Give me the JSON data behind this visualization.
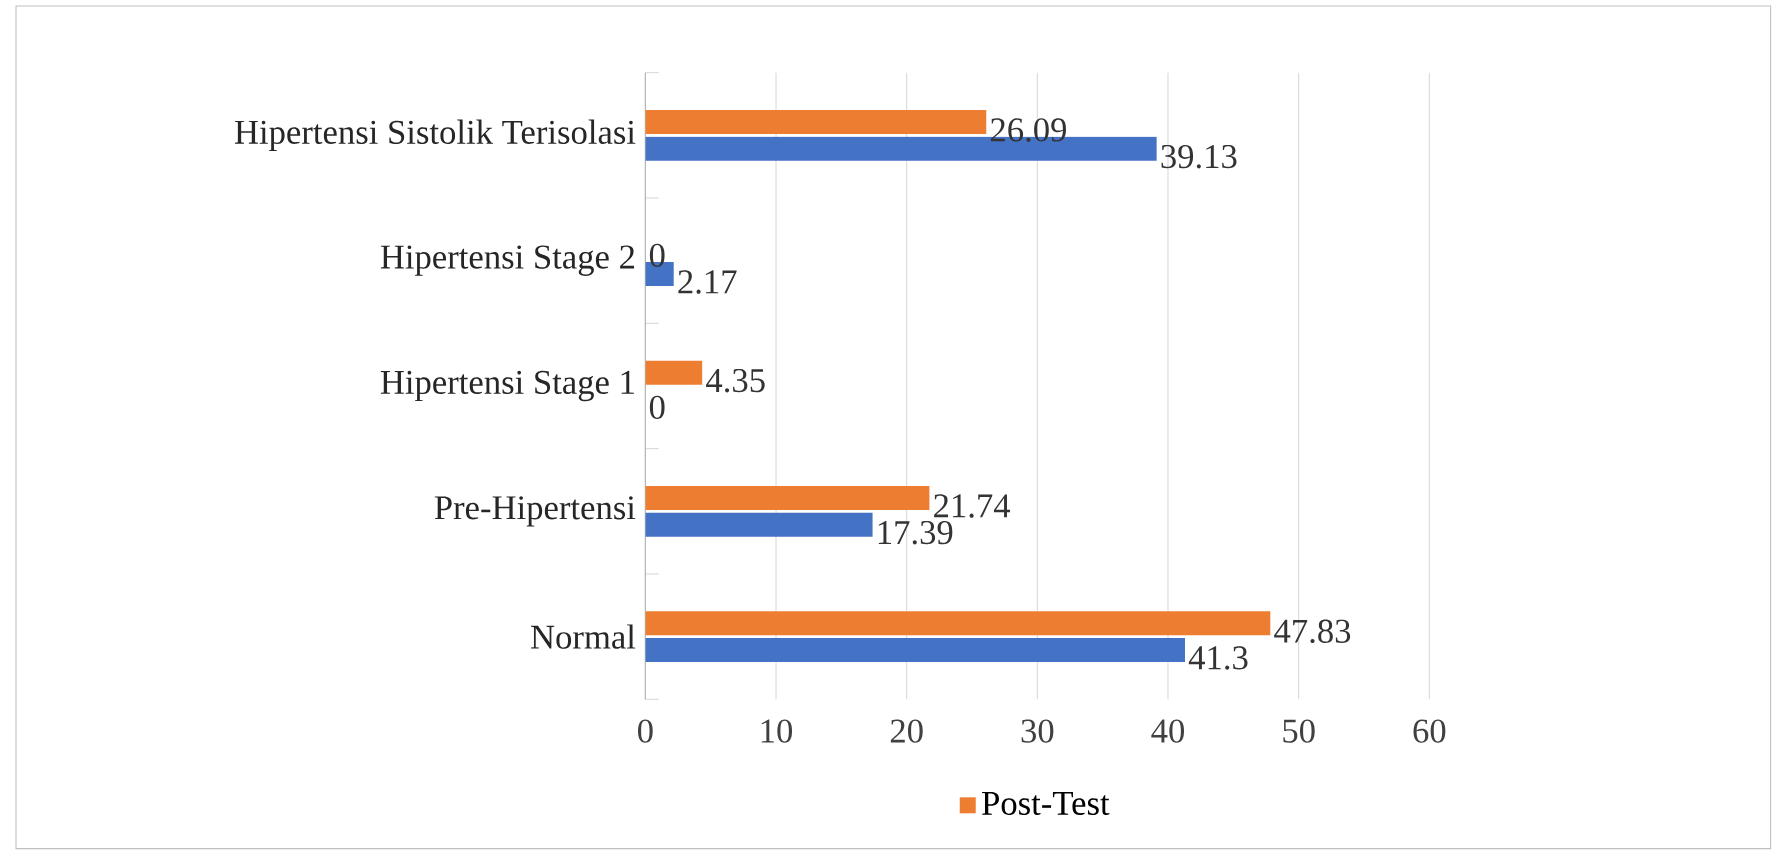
{
  "chart_data": {
    "type": "bar",
    "orientation": "horizontal",
    "categories": [
      "Hipertensi Sistolik Terisolasi",
      "Hipertensi Stage 2",
      "Hipertensi Stage 1",
      "Pre-Hipertensi",
      "Normal"
    ],
    "series": [
      {
        "color": "#4472c4",
        "values": [
          39.13,
          2.17,
          0,
          17.39,
          41.3
        ]
      },
      {
        "name": "Post-Test",
        "color": "#ed7d31",
        "values": [
          26.09,
          0,
          4.35,
          21.74,
          47.83
        ]
      }
    ],
    "xlim": [
      0,
      60
    ],
    "xticks": [
      0,
      10,
      20,
      30,
      40,
      50,
      60
    ],
    "grid": "x",
    "legend": "bottom",
    "data_labels": true
  }
}
